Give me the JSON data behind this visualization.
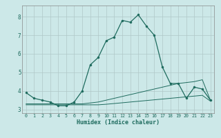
{
  "xlabel": "Humidex (Indice chaleur)",
  "bg_color": "#cce8e8",
  "grid_color": "#b0c8c8",
  "line_color": "#1e6b5e",
  "xlim": [
    -0.5,
    23.5
  ],
  "ylim": [
    2.8,
    8.6
  ],
  "xticks": [
    0,
    1,
    2,
    3,
    4,
    5,
    6,
    7,
    8,
    9,
    10,
    11,
    12,
    13,
    14,
    15,
    16,
    17,
    18,
    19,
    20,
    21,
    22,
    23
  ],
  "yticks": [
    3,
    4,
    5,
    6,
    7,
    8
  ],
  "curve1_x": [
    0,
    1,
    2,
    3,
    4,
    5,
    6,
    7,
    8,
    9,
    10,
    11,
    12,
    13,
    14,
    15,
    16,
    17,
    18,
    19,
    20,
    21,
    22,
    23
  ],
  "curve1_y": [
    3.9,
    3.6,
    3.5,
    3.4,
    3.2,
    3.2,
    3.4,
    4.0,
    5.4,
    5.8,
    6.7,
    6.9,
    7.8,
    7.7,
    8.1,
    7.5,
    7.0,
    5.3,
    4.4,
    4.4,
    3.6,
    4.2,
    4.1,
    3.5
  ],
  "curve2_x": [
    0,
    1,
    2,
    3,
    4,
    5,
    6,
    7,
    8,
    9,
    10,
    11,
    12,
    13,
    14,
    15,
    16,
    17,
    18,
    19,
    20,
    21,
    22,
    23
  ],
  "curve2_y": [
    3.3,
    3.3,
    3.3,
    3.3,
    3.3,
    3.3,
    3.3,
    3.3,
    3.35,
    3.4,
    3.5,
    3.6,
    3.7,
    3.8,
    3.9,
    4.0,
    4.1,
    4.2,
    4.3,
    4.4,
    4.45,
    4.5,
    4.6,
    3.5
  ],
  "curve3_x": [
    0,
    1,
    2,
    3,
    4,
    5,
    6,
    7,
    8,
    9,
    10,
    11,
    12,
    13,
    14,
    15,
    16,
    17,
    18,
    19,
    20,
    21,
    22,
    23
  ],
  "curve3_y": [
    3.25,
    3.25,
    3.25,
    3.25,
    3.25,
    3.25,
    3.25,
    3.25,
    3.25,
    3.25,
    3.28,
    3.32,
    3.36,
    3.4,
    3.44,
    3.48,
    3.52,
    3.56,
    3.6,
    3.64,
    3.68,
    3.72,
    3.76,
    3.45
  ]
}
